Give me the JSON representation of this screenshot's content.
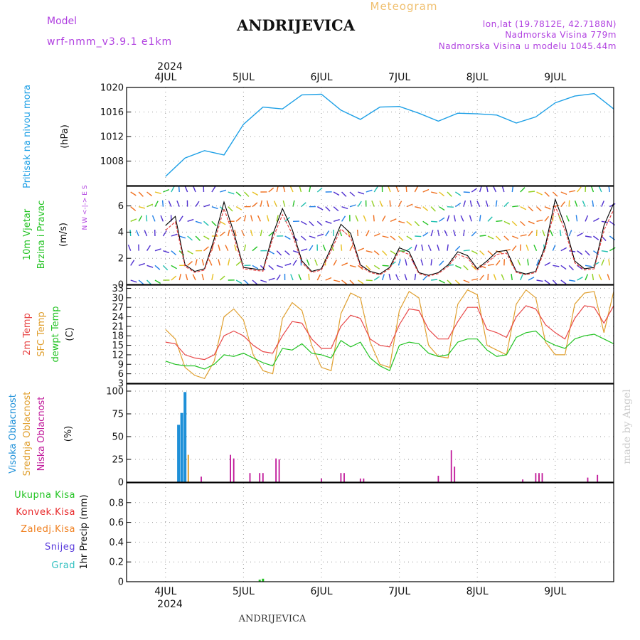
{
  "header": {
    "model_label": "Model",
    "model_name": "wrf-nmm_v3.9.1 e1km",
    "station": "ANDRIJEVICA",
    "meteogram": "Meteogram",
    "lonlat": "lon,lat (19.7812E, 42.7188N)",
    "elevation": "Nadmorska Visina 779m",
    "model_elevation": "Nadmorska Visina u modelu 1045.44m",
    "year_top": "2024",
    "year_bottom": "2024",
    "footer": "ANDRIJEVICA",
    "credit": "made by Angel"
  },
  "colors": {
    "pressure": "#1ea0e6",
    "temp": "#e84848",
    "sfc": "#e0a030",
    "dew": "#22c322",
    "high_cloud": "#1e90d8",
    "mid_cloud": "#e0a030",
    "low_cloud": "#c0189a",
    "rain": "#22c322",
    "conv": "#e8282a",
    "frz": "#f08020",
    "snow": "#5a3cdc",
    "grad": "#30c0c0",
    "purple_text": "#b040e0"
  },
  "chart_data": [
    {
      "panel": "pressure",
      "type": "line",
      "ylabel": "Pritisak na nivou mora",
      "unit": "(hPa)",
      "ylim": [
        1004,
        1020
      ],
      "yticks": [
        1008,
        1012,
        1016,
        1020
      ],
      "x_ticks": [
        "4JUL",
        "5JUL",
        "6JUL",
        "7JUL",
        "8JUL",
        "9JUL"
      ],
      "x_hours": [
        0,
        6,
        12,
        18,
        24,
        30,
        36,
        42,
        48,
        54,
        60,
        66,
        72,
        78,
        84,
        90,
        96,
        102,
        108,
        114,
        120,
        126,
        132,
        138
      ],
      "values": [
        1005.5,
        1008.5,
        1009.7,
        1009.0,
        1014.0,
        1016.8,
        1016.5,
        1018.8,
        1018.9,
        1016.3,
        1014.8,
        1016.8,
        1016.9,
        1015.8,
        1014.5,
        1015.8,
        1015.7,
        1015.5,
        1014.2,
        1015.2,
        1017.5,
        1018.6,
        1019.0,
        1016.5
      ]
    },
    {
      "panel": "wind",
      "type": "line",
      "ylabel_line1": "10m Vjetar",
      "ylabel_line2": "Brzina i Pravac",
      "unit": "(m/s)",
      "compass": "N  W <-|-> E  S",
      "ylim": [
        0,
        7.5
      ],
      "yticks": [
        0,
        2,
        4,
        6
      ],
      "x_hours": [
        0,
        3,
        6,
        9,
        12,
        15,
        18,
        21,
        24,
        27,
        30,
        33,
        36,
        39,
        42,
        45,
        48,
        51,
        54,
        57,
        60,
        63,
        66,
        69,
        72,
        75,
        78,
        81,
        84,
        87,
        90,
        93,
        96,
        99,
        102,
        105,
        108,
        111,
        114,
        117,
        120,
        123,
        126,
        129,
        132,
        135,
        138
      ],
      "values": [
        4.5,
        5.2,
        1.5,
        1.0,
        1.2,
        3.5,
        6.3,
        4.0,
        1.3,
        1.2,
        1.1,
        3.8,
        5.8,
        4.2,
        1.8,
        1.0,
        1.2,
        2.8,
        4.6,
        3.9,
        1.5,
        1.0,
        0.8,
        1.3,
        2.8,
        2.5,
        0.9,
        0.7,
        0.9,
        1.5,
        2.5,
        2.2,
        1.2,
        1.8,
        2.5,
        2.6,
        1.0,
        0.8,
        1.0,
        3.0,
        6.5,
        4.5,
        1.8,
        1.2,
        1.3,
        4.5,
        6.2
      ]
    },
    {
      "panel": "temperature",
      "type": "line",
      "ylabel_series": [
        "2m Temp",
        "SFC Temp",
        "dewpt Temp"
      ],
      "unit": "(C)",
      "ylim": [
        3,
        34
      ],
      "yticks": [
        3,
        6,
        9,
        12,
        15,
        18,
        21,
        24,
        27,
        30,
        33
      ],
      "x_hours": [
        0,
        3,
        6,
        9,
        12,
        15,
        18,
        21,
        24,
        27,
        30,
        33,
        36,
        39,
        42,
        45,
        48,
        51,
        54,
        57,
        60,
        63,
        66,
        69,
        72,
        75,
        78,
        81,
        84,
        87,
        90,
        93,
        96,
        99,
        102,
        105,
        108,
        111,
        114,
        117,
        120,
        123,
        126,
        129,
        132,
        135,
        138
      ],
      "series": [
        {
          "name": "2m Temp",
          "values": [
            16.0,
            15.5,
            12.0,
            11.0,
            10.5,
            12.0,
            18.0,
            19.5,
            18.0,
            15.0,
            13.0,
            12.5,
            18.0,
            22.5,
            22.0,
            17.0,
            14.0,
            14.0,
            21.0,
            24.5,
            23.5,
            17.0,
            15.0,
            14.5,
            21.5,
            26.5,
            26.0,
            20.0,
            17.0,
            17.0,
            22.5,
            27.0,
            27.0,
            20.0,
            19.0,
            17.5,
            24.0,
            27.5,
            26.5,
            21.5,
            19.0,
            17.0,
            23.5,
            27.5,
            27.0,
            22.0,
            27.5
          ]
        },
        {
          "name": "SFC Temp",
          "values": [
            20.0,
            17.0,
            8.0,
            5.5,
            4.5,
            10.0,
            24.0,
            26.5,
            23.0,
            12.0,
            7.0,
            6.0,
            23.5,
            28.5,
            26.0,
            15.0,
            8.0,
            7.0,
            25.0,
            31.5,
            30.0,
            16.0,
            9.0,
            8.0,
            26.0,
            32.0,
            30.0,
            15.0,
            11.5,
            11.0,
            28.0,
            32.5,
            31.0,
            15.0,
            13.5,
            12.0,
            28.0,
            32.5,
            30.0,
            16.0,
            12.0,
            12.0,
            28.0,
            31.5,
            32.0,
            19.0,
            32.0
          ]
        },
        {
          "name": "dewpt Temp",
          "values": [
            10.0,
            9.0,
            8.5,
            8.5,
            7.5,
            9.0,
            12.0,
            11.5,
            12.5,
            11.0,
            9.5,
            8.5,
            14.0,
            13.5,
            15.5,
            12.5,
            12.0,
            11.0,
            16.5,
            14.5,
            16.0,
            11.0,
            8.5,
            7.0,
            15.0,
            16.0,
            15.5,
            12.5,
            11.5,
            12.0,
            16.0,
            17.0,
            17.0,
            13.5,
            11.5,
            12.0,
            17.5,
            19.0,
            19.5,
            16.5,
            15.0,
            14.0,
            17.0,
            18.0,
            18.5,
            17.0,
            15.5
          ]
        }
      ]
    },
    {
      "panel": "cloud",
      "type": "bar",
      "ylabel_series": [
        "Visoka Oblacnost",
        "Srednja Oblacnost",
        "Niska Oblacnost"
      ],
      "unit": "(%)",
      "ylim": [
        0,
        100
      ],
      "yticks": [
        0,
        25,
        50,
        75,
        100
      ],
      "series": [
        {
          "name": "Visoka Oblacnost",
          "x_hours": [
            4,
            5,
            6
          ],
          "values": [
            63,
            76,
            99
          ]
        },
        {
          "name": "Srednja Oblacnost",
          "x_hours": [
            7,
            115
          ],
          "values": [
            30,
            8
          ]
        },
        {
          "name": "Niska Oblacnost",
          "x_hours": [
            11,
            20,
            21,
            26,
            29,
            30,
            34,
            35,
            48,
            54,
            55,
            60,
            61,
            84,
            88,
            89,
            110,
            114,
            115,
            116,
            130,
            133
          ],
          "values": [
            6,
            30,
            26,
            10,
            10,
            10,
            26,
            25,
            4,
            10,
            10,
            4,
            4,
            7,
            35,
            17,
            3,
            10,
            10,
            10,
            5,
            8
          ]
        }
      ]
    },
    {
      "panel": "precip",
      "type": "bar",
      "ylabel_series": [
        "Ukupna Kisa",
        "Konvek.Kisa",
        "Zaledj.Kisa",
        "Snijeg",
        "Grad"
      ],
      "unit": "1hr Precip (mm)",
      "ylim": [
        0,
        1
      ],
      "yticks": [
        0,
        0.2,
        0.4,
        0.6,
        0.8
      ],
      "series": [
        {
          "name": "Ukupna Kisa",
          "x_hours": [
            29,
            30
          ],
          "values": [
            0.02,
            0.03
          ]
        }
      ]
    }
  ]
}
